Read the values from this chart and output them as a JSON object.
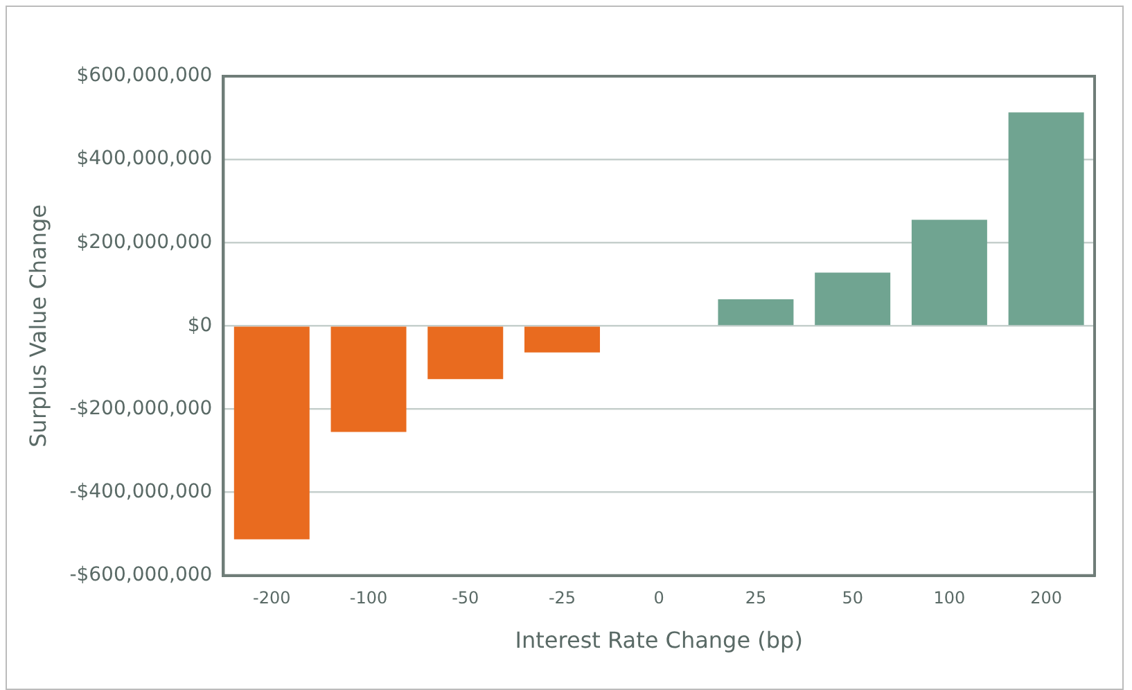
{
  "chart_data": {
    "type": "bar",
    "xlabel": "Interest Rate Change (bp)",
    "ylabel": "Surplus Value Change",
    "categories": [
      "-200",
      "-100",
      "-50",
      "-25",
      "0",
      "25",
      "50",
      "100",
      "200"
    ],
    "values": [
      -513000000,
      -255000000,
      -128000000,
      -64000000,
      0,
      64000000,
      128000000,
      255000000,
      513000000
    ],
    "colors": [
      "#e96b1f",
      "#e96b1f",
      "#e96b1f",
      "#e96b1f",
      "#e96b1f",
      "#70a491",
      "#70a491",
      "#70a491",
      "#70a491"
    ],
    "ylim": [
      -600000000,
      600000000
    ],
    "yticks": [
      {
        "value": -600000000,
        "label": "-$600,000,000"
      },
      {
        "value": -400000000,
        "label": "-$400,000,000"
      },
      {
        "value": -200000000,
        "label": "-$200,000,000"
      },
      {
        "value": 0,
        "label": "$0"
      },
      {
        "value": 200000000,
        "label": "$200,000,000"
      },
      {
        "value": 400000000,
        "label": "$400,000,000"
      },
      {
        "value": 600000000,
        "label": "$600,000,000"
      }
    ],
    "grid": "y",
    "legend": false
  }
}
